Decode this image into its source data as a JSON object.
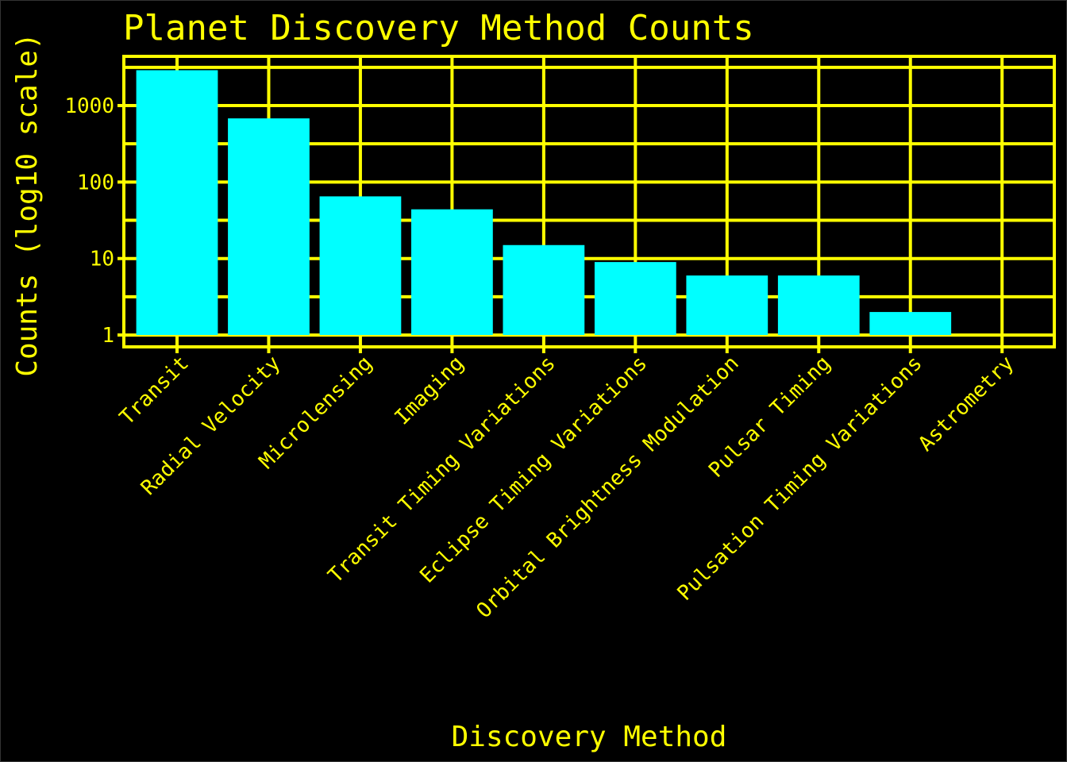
{
  "chart_data": {
    "type": "bar",
    "title": "Planet Discovery Method Counts",
    "xlabel": "Discovery Method",
    "ylabel": "Counts (log10 scale)",
    "y_scale": "log10",
    "ylim": [
      0.7,
      4400
    ],
    "y_ticks": [
      1,
      10,
      100,
      1000
    ],
    "y_tick_labels": [
      "1",
      "10",
      "100",
      "1000"
    ],
    "categories": [
      "Transit",
      "Radial Velocity",
      "Microlensing",
      "Imaging",
      "Transit Timing Variations",
      "Eclipse Timing Variations",
      "Orbital Brightness Modulation",
      "Pulsar Timing",
      "Pulsation Timing Variations",
      "Astrometry"
    ],
    "values": [
      2900,
      680,
      65,
      44,
      15,
      9,
      6,
      6,
      2,
      1
    ],
    "grid": true,
    "legend": "none",
    "colors": {
      "background": "#000000",
      "bar": "#00ffff",
      "text": "#ffff00",
      "grid": "#ffff00"
    }
  }
}
